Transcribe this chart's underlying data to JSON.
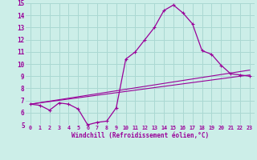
{
  "xlabel": "Windchill (Refroidissement éolien,°C)",
  "bg_color": "#cceee8",
  "grid_color": "#aad8d2",
  "line_color": "#990099",
  "xlim": [
    -0.5,
    23.5
  ],
  "ylim": [
    5,
    15
  ],
  "xticks": [
    0,
    1,
    2,
    3,
    4,
    5,
    6,
    7,
    8,
    9,
    10,
    11,
    12,
    13,
    14,
    15,
    16,
    17,
    18,
    19,
    20,
    21,
    22,
    23
  ],
  "yticks": [
    5,
    6,
    7,
    8,
    9,
    10,
    11,
    12,
    13,
    14,
    15
  ],
  "line1_x": [
    0,
    1,
    2,
    3,
    4,
    5,
    6,
    7,
    8,
    9,
    10,
    11,
    12,
    13,
    14,
    15,
    16,
    17,
    18,
    19,
    20,
    21,
    22,
    23
  ],
  "line1_y": [
    6.7,
    6.6,
    6.2,
    6.8,
    6.7,
    6.3,
    5.0,
    5.2,
    5.3,
    6.4,
    10.4,
    11.0,
    12.0,
    13.0,
    14.4,
    14.85,
    14.2,
    13.3,
    11.1,
    10.8,
    9.9,
    9.2,
    9.1,
    9.0
  ],
  "line2_x": [
    0,
    23
  ],
  "line2_y": [
    6.7,
    9.1
  ],
  "line3_x": [
    0,
    23
  ],
  "line3_y": [
    6.7,
    9.5
  ]
}
